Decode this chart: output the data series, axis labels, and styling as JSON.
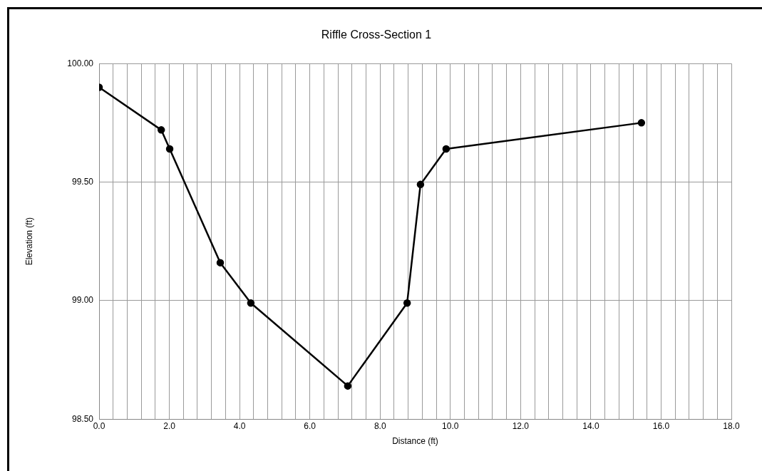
{
  "chart_data": {
    "type": "line",
    "title": "Riffle Cross-Section 1",
    "xlabel": "Distance (ft)",
    "ylabel": "Elevation (ft)",
    "x": [
      0,
      1.77,
      2.01,
      3.45,
      4.32,
      7.08,
      8.77,
      9.15,
      9.88,
      15.44
    ],
    "series": [
      {
        "color": "#000000",
        "values": [
          99.9,
          99.72,
          99.64,
          99.16,
          98.99,
          98.64,
          98.99,
          99.49,
          99.64,
          99.75
        ]
      }
    ],
    "xlim": [
      0,
      18
    ],
    "xticks": [
      {
        "value": 0,
        "label": "0.0"
      },
      {
        "value": 0.4,
        "label": null
      },
      {
        "value": 0.8,
        "label": null
      },
      {
        "value": 1.2,
        "label": null
      },
      {
        "value": 1.6,
        "label": null
      },
      {
        "value": 2,
        "label": "2.0"
      },
      {
        "value": 2.4,
        "label": null
      },
      {
        "value": 2.8,
        "label": null
      },
      {
        "value": 3.2,
        "label": null
      },
      {
        "value": 3.6,
        "label": null
      },
      {
        "value": 4,
        "label": "4.0"
      },
      {
        "value": 4.4,
        "label": null
      },
      {
        "value": 4.8,
        "label": null
      },
      {
        "value": 5.2,
        "label": null
      },
      {
        "value": 5.6,
        "label": null
      },
      {
        "value": 6,
        "label": "6.0"
      },
      {
        "value": 6.4,
        "label": null
      },
      {
        "value": 6.8,
        "label": null
      },
      {
        "value": 7.2,
        "label": null
      },
      {
        "value": 7.6,
        "label": null
      },
      {
        "value": 8,
        "label": "8.0"
      },
      {
        "value": 8.4,
        "label": null
      },
      {
        "value": 8.8,
        "label": null
      },
      {
        "value": 9.2,
        "label": null
      },
      {
        "value": 9.6,
        "label": null
      },
      {
        "value": 10,
        "label": "10.0"
      },
      {
        "value": 10.4,
        "label": null
      },
      {
        "value": 10.8,
        "label": null
      },
      {
        "value": 11.2,
        "label": null
      },
      {
        "value": 11.6,
        "label": null
      },
      {
        "value": 12,
        "label": "12.0"
      },
      {
        "value": 12.4,
        "label": null
      },
      {
        "value": 12.8,
        "label": null
      },
      {
        "value": 13.2,
        "label": null
      },
      {
        "value": 13.6,
        "label": null
      },
      {
        "value": 14,
        "label": "14.0"
      },
      {
        "value": 14.4,
        "label": null
      },
      {
        "value": 14.8,
        "label": null
      },
      {
        "value": 15.2,
        "label": null
      },
      {
        "value": 15.6,
        "label": null
      },
      {
        "value": 16,
        "label": "16.0"
      },
      {
        "value": 16.4,
        "label": null
      },
      {
        "value": 16.8,
        "label": null
      },
      {
        "value": 17.2,
        "label": null
      },
      {
        "value": 17.6,
        "label": null
      },
      {
        "value": 18,
        "label": "18.0"
      }
    ],
    "ylim": [
      98.5,
      100
    ],
    "yticks": [
      {
        "value": 98.5,
        "label": "98.50"
      },
      {
        "value": 99,
        "label": "99.00"
      },
      {
        "value": 99.5,
        "label": "99.50"
      },
      {
        "value": 100,
        "label": "100.00"
      }
    ],
    "grid": true,
    "legend": false,
    "marker": "circle",
    "line_style": "solid"
  }
}
